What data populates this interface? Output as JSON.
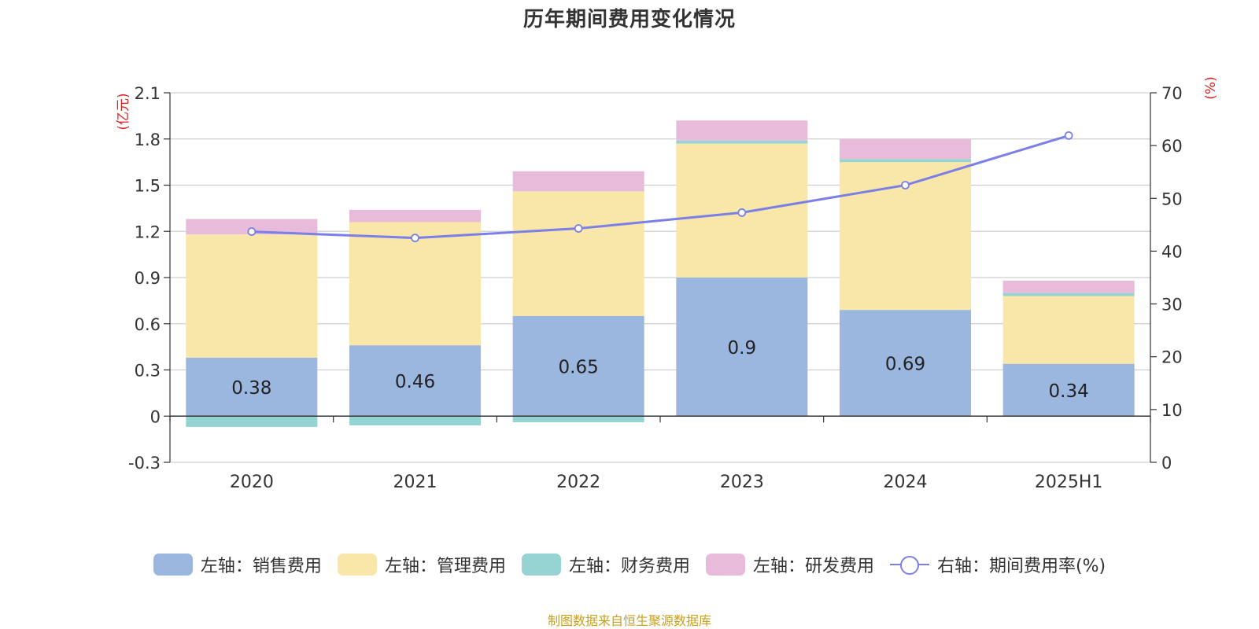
{
  "title": "历年期间费用变化情况",
  "source": "制图数据来自恒生聚源数据库",
  "chart_data": {
    "type": "bar",
    "stacked": true,
    "categories": [
      "2020",
      "2021",
      "2022",
      "2023",
      "2024",
      "2025H1"
    ],
    "left_axis": {
      "unit": "(亿元)",
      "ylim": [
        -0.3,
        2.1
      ],
      "ticks": [
        "-0.3",
        "0",
        "0.3",
        "0.6",
        "0.9",
        "1.2",
        "1.5",
        "1.8",
        "2.1"
      ]
    },
    "right_axis": {
      "unit": "(%)",
      "ylim": [
        0,
        70
      ],
      "ticks": [
        "0",
        "10",
        "20",
        "30",
        "40",
        "50",
        "60",
        "70"
      ]
    },
    "series": [
      {
        "name": "左轴：销售费用",
        "axis": "left",
        "type": "bar",
        "color": "#9bb7e0",
        "values": [
          0.38,
          0.46,
          0.65,
          0.9,
          0.69,
          0.34
        ],
        "labels": [
          "0.38",
          "0.46",
          "0.65",
          "0.9",
          "0.69",
          "0.34"
        ]
      },
      {
        "name": "左轴：管理费用",
        "axis": "left",
        "type": "bar",
        "color": "#f8e7a8",
        "values": [
          0.8,
          0.8,
          0.81,
          0.87,
          0.96,
          0.44
        ]
      },
      {
        "name": "左轴：财务费用",
        "axis": "left",
        "type": "bar",
        "color": "#96d4d4",
        "values": [
          -0.07,
          -0.06,
          -0.04,
          0.02,
          0.02,
          0.02
        ]
      },
      {
        "name": "左轴：研发费用",
        "axis": "left",
        "type": "bar",
        "color": "#e8bbdb",
        "values": [
          0.1,
          0.08,
          0.13,
          0.13,
          0.13,
          0.08
        ]
      },
      {
        "name": "右轴：期间费用率(%)",
        "axis": "right",
        "type": "line",
        "color": "#7b7fe8",
        "values": [
          43.7,
          42.5,
          44.3,
          47.3,
          52.5,
          61.9
        ]
      }
    ],
    "grid": true,
    "legend_position": "bottom"
  }
}
